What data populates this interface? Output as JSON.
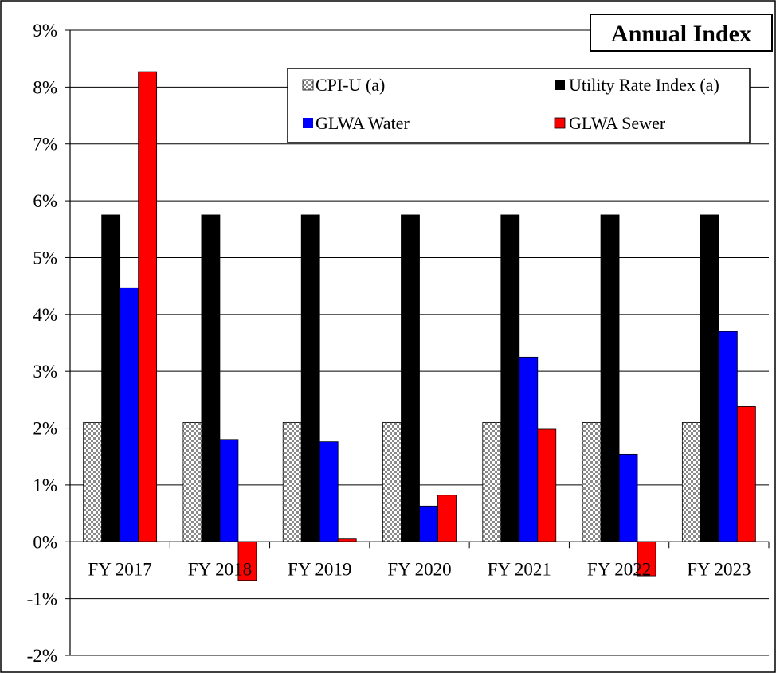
{
  "chart_data": {
    "type": "bar",
    "title": "Annual Index",
    "categories": [
      "FY 2017",
      "FY 2018",
      "FY 2019",
      "FY 2020",
      "FY 2021",
      "FY 2022",
      "FY 2023"
    ],
    "series": [
      {
        "name": "CPI-U  (a)",
        "color": "#9a9a9a",
        "pattern": "checker",
        "values": [
          2.1,
          2.1,
          2.1,
          2.1,
          2.1,
          2.1,
          2.1
        ]
      },
      {
        "name": "Utility Rate Index (a)",
        "color": "#000000",
        "values": [
          5.75,
          5.75,
          5.75,
          5.75,
          5.75,
          5.75,
          5.75
        ]
      },
      {
        "name": "GLWA Water",
        "color": "#0000ff",
        "values": [
          4.47,
          1.8,
          1.76,
          0.63,
          3.25,
          1.54,
          3.7
        ]
      },
      {
        "name": "GLWA Sewer",
        "color": "#ff0000",
        "values": [
          8.27,
          -0.68,
          0.05,
          0.82,
          1.98,
          -0.6,
          2.38
        ]
      }
    ],
    "yticks": [
      "9%",
      "8%",
      "7%",
      "6%",
      "5%",
      "4%",
      "3%",
      "2%",
      "1%",
      "0%",
      "-1%",
      "-2%"
    ],
    "ylim": [
      -2,
      9
    ],
    "xlabel": "",
    "ylabel": "",
    "grid": true,
    "legend": "top-right"
  }
}
